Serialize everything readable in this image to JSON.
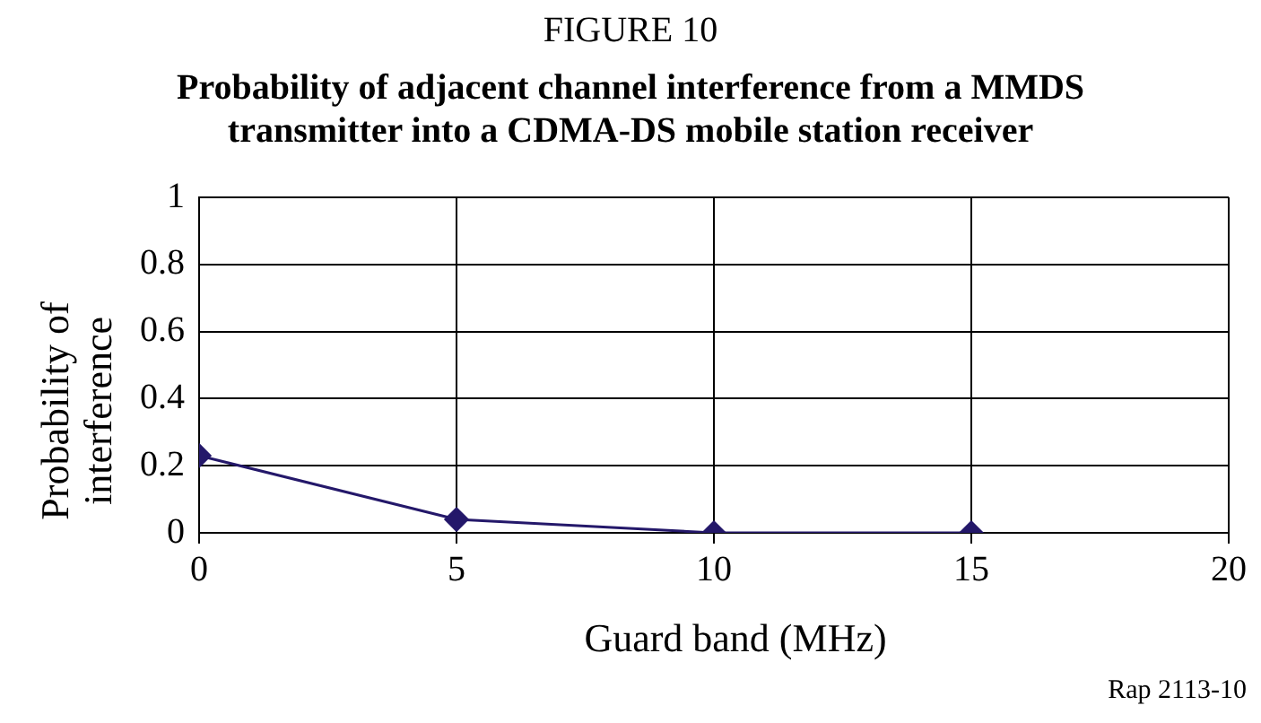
{
  "chart_data": {
    "type": "line",
    "title": "Probability of adjacent channel interference from a MMDS transmitter into a CDMA-DS mobile station receiver",
    "annotations": [
      "FIGURE 10",
      "Rap 2113-10"
    ],
    "xlabel": "Guard band (MHz)",
    "ylabel": "Probability of interference",
    "x": [
      0,
      5,
      10,
      15
    ],
    "series": [
      {
        "color": "#24186a",
        "values": [
          0.23,
          0.04,
          0,
          0
        ]
      }
    ],
    "xlim": [
      0,
      20
    ],
    "xticks": [
      0,
      5,
      10,
      15,
      20
    ],
    "ylim": [
      0,
      1
    ],
    "yticks": [
      0,
      0.2,
      0.4,
      0.6,
      0.8,
      1
    ],
    "grid": true,
    "legend": false,
    "marker": "diamond",
    "line_style": "solid"
  }
}
